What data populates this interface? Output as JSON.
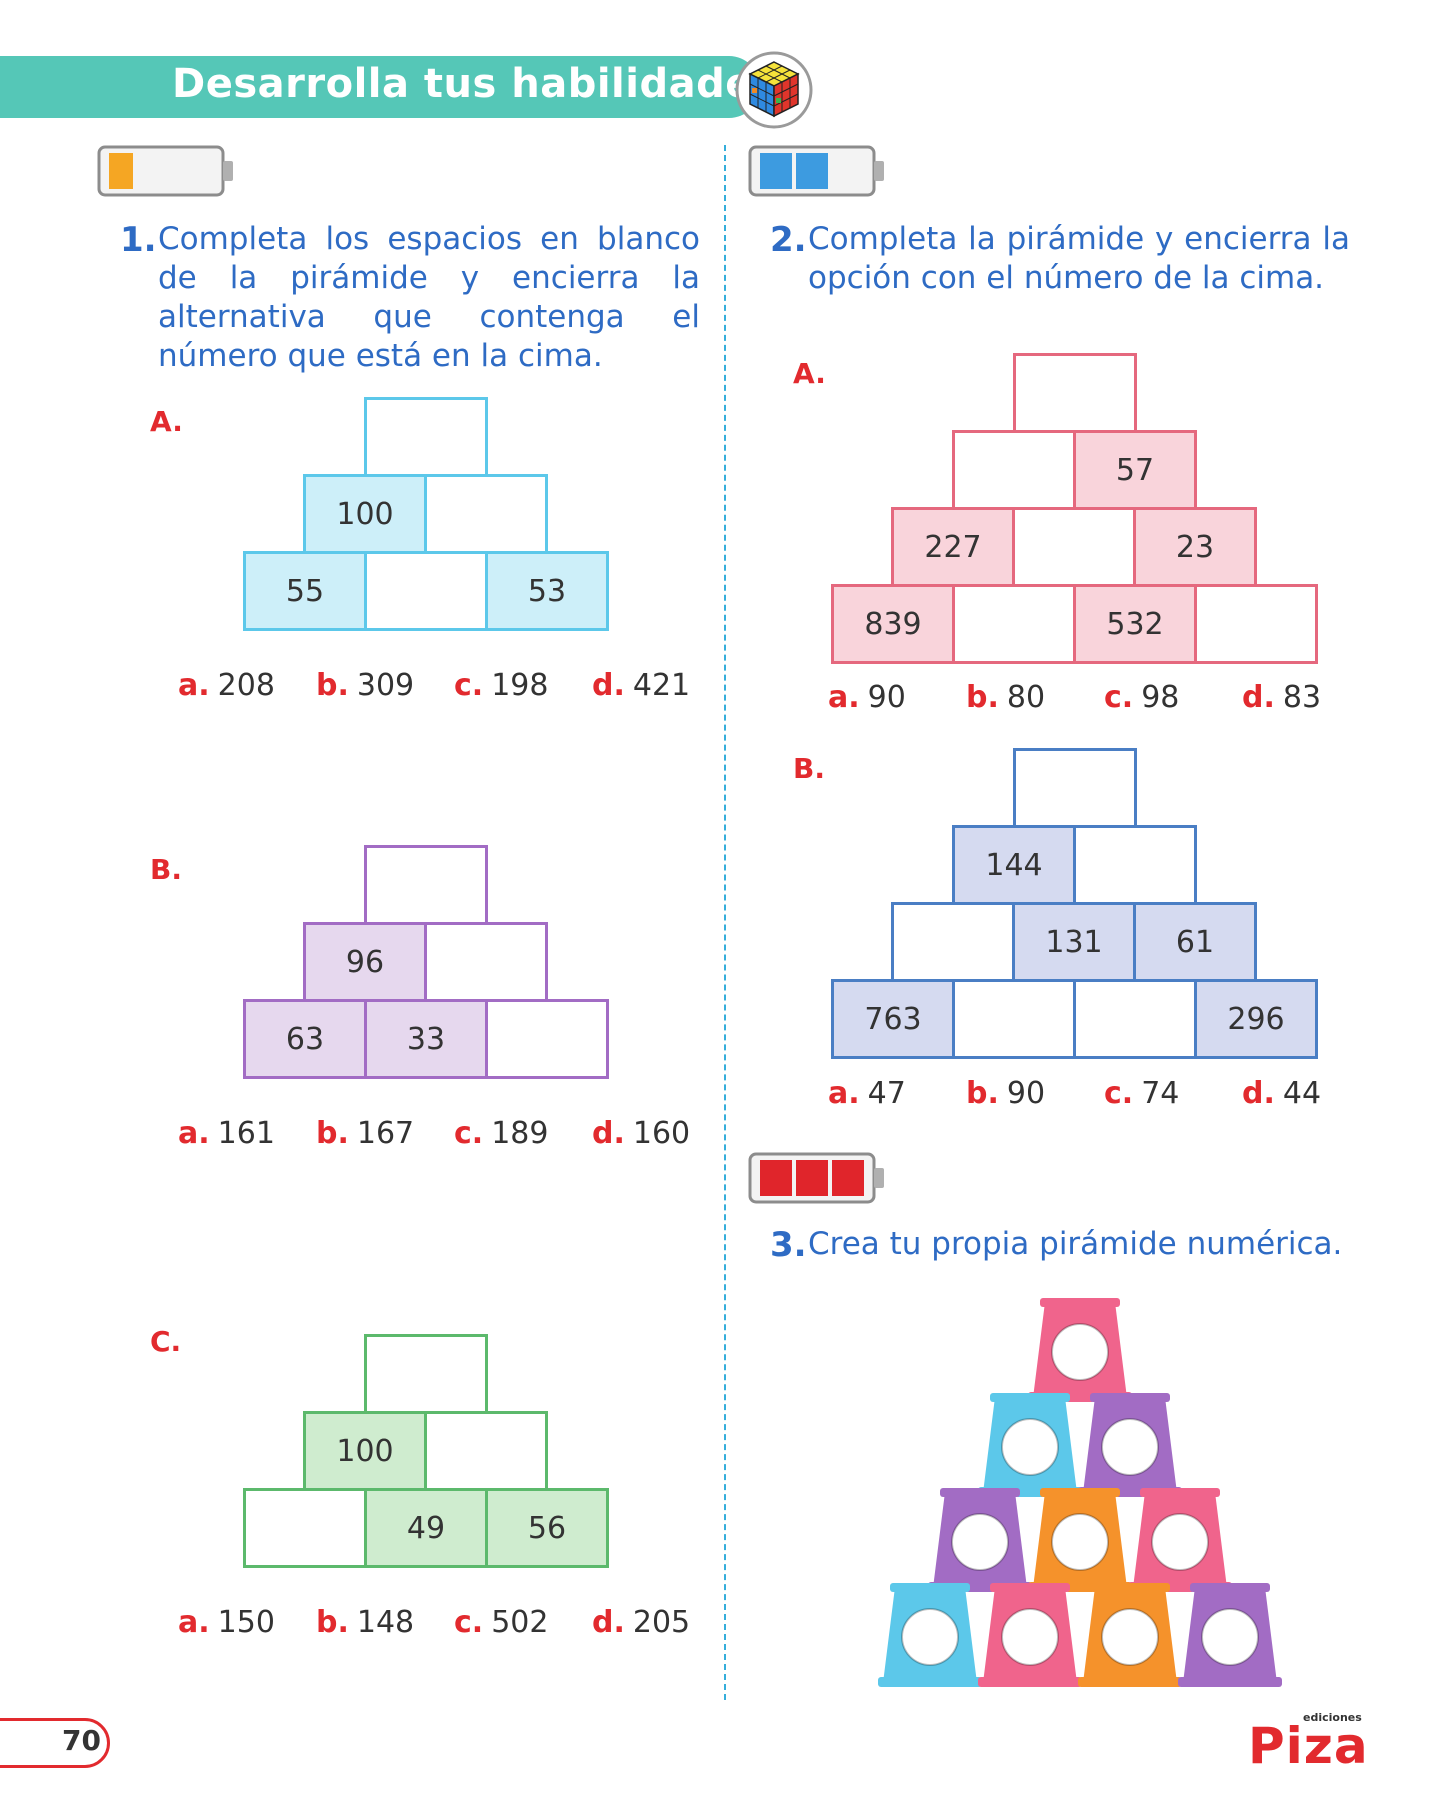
{
  "header": {
    "title": "Desarrolla tus habilidades"
  },
  "ex1": {
    "number": "1.",
    "text": "Completa los espacios en blanco de la pirámide y encierra la alternativa que contenga el número que está en la cima.",
    "A": {
      "label": "A.",
      "row2": [
        "100",
        ""
      ],
      "row3": [
        "55",
        "",
        "53"
      ],
      "options": [
        [
          "a.",
          "208"
        ],
        [
          "b.",
          "309"
        ],
        [
          "c.",
          "198"
        ],
        [
          "d.",
          "421"
        ]
      ]
    },
    "B": {
      "label": "B.",
      "row2": [
        "96",
        ""
      ],
      "row3": [
        "63",
        "33",
        ""
      ],
      "options": [
        [
          "a.",
          "161"
        ],
        [
          "b.",
          "167"
        ],
        [
          "c.",
          "189"
        ],
        [
          "d.",
          "160"
        ]
      ]
    },
    "C": {
      "label": "C.",
      "row2": [
        "100",
        ""
      ],
      "row3": [
        "",
        "49",
        "56"
      ],
      "options": [
        [
          "a.",
          "150"
        ],
        [
          "b.",
          "148"
        ],
        [
          "c.",
          "502"
        ],
        [
          "d.",
          "205"
        ]
      ]
    }
  },
  "ex2": {
    "number": "2.",
    "text": "Completa la pirámide y encierra la opción con el número de la cima.",
    "A": {
      "label": "A.",
      "row2": [
        "",
        "57"
      ],
      "row3": [
        "227",
        "",
        "23"
      ],
      "row4": [
        "839",
        "",
        "532",
        ""
      ],
      "options": [
        [
          "a.",
          "90"
        ],
        [
          "b.",
          "80"
        ],
        [
          "c.",
          "98"
        ],
        [
          "d.",
          "83"
        ]
      ]
    },
    "B": {
      "label": "B.",
      "row2": [
        "144",
        ""
      ],
      "row3": [
        "",
        "131",
        "61"
      ],
      "row4": [
        "763",
        "",
        "",
        "296"
      ],
      "options": [
        [
          "a.",
          "47"
        ],
        [
          "b.",
          "90"
        ],
        [
          "c.",
          "74"
        ],
        [
          "d.",
          "44"
        ]
      ]
    }
  },
  "ex3": {
    "number": "3.",
    "text": "Crea tu propia pirámide numérica."
  },
  "footer": {
    "page_number": "70",
    "logo_small": "ediciones",
    "logo": "Piza"
  },
  "colors": {
    "blue": "#5cc8ea",
    "purple": "#a26cc4",
    "green": "#5cb96c",
    "pink": "#e5687e",
    "navy": "#4a7ec4",
    "red": "#e22a2e",
    "text_blue": "#2e6bc4",
    "teal": "#55c7b7"
  }
}
